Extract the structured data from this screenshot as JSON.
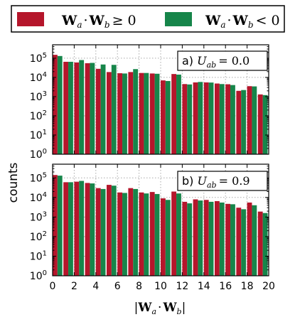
{
  "legend": {
    "items": [
      {
        "label": "W",
        "sub1": "a",
        "dot": "·",
        "label2": "W",
        "sub2": "b",
        "rel": "≥ 0",
        "color": "#b5162b"
      },
      {
        "label": "W",
        "sub1": "a",
        "dot": "·",
        "label2": "W",
        "sub2": "b",
        "rel": "< 0",
        "color": "#16854a"
      }
    ]
  },
  "ylabel": "counts",
  "xlabel": {
    "bar": "|",
    "w1": "W",
    "s1": "a",
    "dot": "·",
    "w2": "W",
    "s2": "b",
    "bar2": "|"
  },
  "chart_data": [
    {
      "type": "bar",
      "annotation": {
        "prefix": "a)",
        "var": "U",
        "sub": "ab",
        "eq": "=",
        "value": "0.0"
      },
      "x": [
        0,
        1,
        2,
        3,
        4,
        5,
        6,
        7,
        8,
        9,
        10,
        11,
        12,
        13,
        14,
        15,
        16,
        17,
        18,
        19
      ],
      "series": [
        {
          "color": "#b5162b",
          "values": [
            150000,
            65000,
            60000,
            55000,
            28000,
            19000,
            16500,
            19000,
            17000,
            16000,
            7000,
            15000,
            4500,
            5500,
            5500,
            4800,
            4400,
            2000,
            3500,
            1300
          ]
        },
        {
          "color": "#16854a",
          "values": [
            130000,
            65000,
            80000,
            57000,
            47000,
            45000,
            16000,
            27000,
            17000,
            15500,
            6500,
            14000,
            4300,
            5800,
            5400,
            4500,
            4000,
            2200,
            3400,
            1200
          ]
        }
      ],
      "xlim": [
        0,
        20
      ],
      "ylim": [
        1,
        500000
      ],
      "yscale": "log",
      "yticks": [
        "10^0",
        "10^1",
        "10^2",
        "10^3",
        "10^4",
        "10^5"
      ],
      "grid": true
    },
    {
      "type": "bar",
      "annotation": {
        "prefix": "b)",
        "var": "U",
        "sub": "ab",
        "eq": "=",
        "value": "0.9"
      },
      "x": [
        0,
        1,
        2,
        3,
        4,
        5,
        6,
        7,
        8,
        9,
        10,
        11,
        12,
        13,
        14,
        15,
        16,
        17,
        18,
        19
      ],
      "series": [
        {
          "color": "#b5162b",
          "values": [
            140000,
            60000,
            64000,
            55000,
            30000,
            44000,
            18000,
            30000,
            18000,
            19000,
            9000,
            20000,
            6000,
            8000,
            7500,
            6500,
            4700,
            3000,
            5500,
            1900
          ]
        },
        {
          "color": "#16854a",
          "values": [
            130000,
            60000,
            70000,
            52000,
            27000,
            40000,
            17000,
            27000,
            16000,
            15000,
            7500,
            16000,
            5000,
            7000,
            6000,
            5500,
            4500,
            2500,
            4000,
            1600
          ]
        }
      ],
      "xlim": [
        0,
        20
      ],
      "ylim": [
        1,
        500000
      ],
      "yscale": "log",
      "yticks": [
        "10^0",
        "10^1",
        "10^2",
        "10^3",
        "10^4",
        "10^5"
      ],
      "xticks": [
        0,
        2,
        4,
        6,
        8,
        10,
        12,
        14,
        16,
        18,
        20
      ],
      "grid": true
    }
  ]
}
